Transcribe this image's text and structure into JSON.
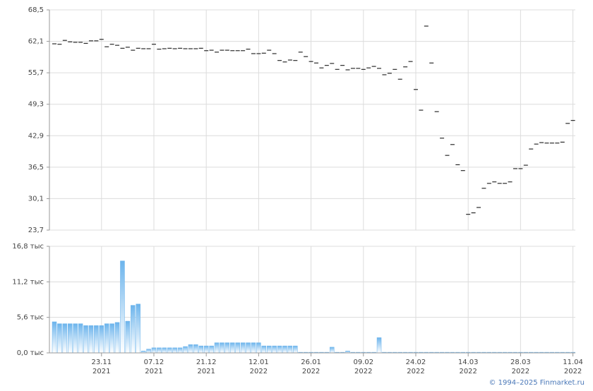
{
  "chart_data": [
    {
      "type": "dash",
      "color": "#000000",
      "grid": true,
      "ylim": [
        23.7,
        68.5
      ],
      "yticks": [
        {
          "value": 23.7,
          "label": "23,7"
        },
        {
          "value": 30.1,
          "label": "30,1"
        },
        {
          "value": 36.5,
          "label": "36,5"
        },
        {
          "value": 42.9,
          "label": "42,9"
        },
        {
          "value": 49.3,
          "label": "49,3"
        },
        {
          "value": 55.7,
          "label": "55,7"
        },
        {
          "value": 62.1,
          "label": "62,1"
        },
        {
          "value": 68.5,
          "label": "68,5"
        }
      ],
      "values": [
        61.6,
        61.5,
        62.3,
        62.0,
        61.9,
        61.9,
        61.7,
        62.2,
        62.2,
        62.5,
        61.0,
        61.5,
        61.3,
        60.7,
        60.9,
        60.3,
        60.7,
        60.6,
        60.6,
        61.5,
        60.5,
        60.6,
        60.7,
        60.6,
        60.7,
        60.6,
        60.6,
        60.6,
        60.7,
        60.2,
        60.3,
        59.9,
        60.3,
        60.3,
        60.2,
        60.2,
        60.2,
        60.5,
        59.6,
        59.6,
        59.7,
        60.3,
        59.6,
        58.2,
        57.9,
        58.3,
        58.2,
        59.9,
        59.0,
        58.0,
        57.7,
        56.7,
        57.2,
        57.6,
        56.4,
        57.2,
        56.3,
        56.6,
        56.6,
        56.4,
        56.7,
        57.0,
        56.6,
        55.3,
        55.6,
        56.4,
        54.4,
        56.9,
        58.0,
        52.3,
        48.1,
        65.2,
        57.7,
        47.8,
        42.4,
        38.9,
        41.1,
        37.0,
        35.8,
        26.9,
        27.2,
        28.3,
        32.2,
        33.2,
        33.5,
        33.2,
        33.2,
        33.5,
        36.2,
        36.2,
        36.9,
        40.2,
        41.2,
        41.5,
        41.4,
        41.4,
        41.4,
        41.6,
        45.4,
        46.0
      ]
    },
    {
      "type": "bar",
      "color": "#6cb4ec",
      "grid": true,
      "ylim": [
        0,
        16.8
      ],
      "yticks": [
        {
          "value": 0,
          "label": "0,0 тыс"
        },
        {
          "value": 5.6,
          "label": "5,6 тыс"
        },
        {
          "value": 11.2,
          "label": "11,2 тыс"
        },
        {
          "value": 16.8,
          "label": "16,8 тыс"
        }
      ],
      "categories": [
        null,
        null,
        null,
        null,
        null,
        null,
        null,
        null,
        null,
        "23.11",
        null,
        null,
        null,
        null,
        null,
        null,
        null,
        null,
        null,
        "07.12",
        null,
        null,
        null,
        null,
        null,
        null,
        null,
        null,
        null,
        "21.12",
        null,
        null,
        null,
        null,
        null,
        null,
        null,
        null,
        null,
        "12.01",
        null,
        null,
        null,
        null,
        null,
        null,
        null,
        null,
        null,
        "26.01",
        null,
        null,
        null,
        null,
        null,
        null,
        null,
        null,
        null,
        "09.02",
        null,
        null,
        null,
        null,
        null,
        null,
        null,
        null,
        null,
        "24.02",
        null,
        null,
        null,
        null,
        null,
        null,
        null,
        null,
        null,
        "14.03",
        null,
        null,
        null,
        null,
        null,
        null,
        null,
        null,
        null,
        "28.03",
        null,
        null,
        null,
        null,
        null,
        null,
        null,
        null,
        null,
        "11.04"
      ],
      "category_years": [
        null,
        null,
        null,
        null,
        null,
        null,
        null,
        null,
        null,
        "2021",
        null,
        null,
        null,
        null,
        null,
        null,
        null,
        null,
        null,
        "2021",
        null,
        null,
        null,
        null,
        null,
        null,
        null,
        null,
        null,
        "2021",
        null,
        null,
        null,
        null,
        null,
        null,
        null,
        null,
        null,
        "2022",
        null,
        null,
        null,
        null,
        null,
        null,
        null,
        null,
        null,
        "2022",
        null,
        null,
        null,
        null,
        null,
        null,
        null,
        null,
        null,
        "2022",
        null,
        null,
        null,
        null,
        null,
        null,
        null,
        null,
        null,
        "2022",
        null,
        null,
        null,
        null,
        null,
        null,
        null,
        null,
        null,
        "2022",
        null,
        null,
        null,
        null,
        null,
        null,
        null,
        null,
        null,
        "2022",
        null,
        null,
        null,
        null,
        null,
        null,
        null,
        null,
        null,
        "2022"
      ],
      "values": [
        4.9,
        4.6,
        4.6,
        4.6,
        4.6,
        4.6,
        4.3,
        4.3,
        4.3,
        4.3,
        4.6,
        4.6,
        4.8,
        14.5,
        5.0,
        7.5,
        7.7,
        0.3,
        0.6,
        0.8,
        0.8,
        0.8,
        0.8,
        0.8,
        0.8,
        1.0,
        1.3,
        1.3,
        1.1,
        1.1,
        1.1,
        1.6,
        1.6,
        1.6,
        1.6,
        1.6,
        1.6,
        1.6,
        1.6,
        1.6,
        1.1,
        1.1,
        1.1,
        1.1,
        1.1,
        1.1,
        1.1,
        0.1,
        0.1,
        0.1,
        0.1,
        0.1,
        0.1,
        0.9,
        0.1,
        0.1,
        0.3,
        0.1,
        0.1,
        0.1,
        0.1,
        0.1,
        2.4,
        0.1,
        0.1,
        0.1,
        0.1,
        0.1,
        0.1,
        0.1,
        0.1,
        0.1,
        0.1,
        0.1,
        0.1,
        0.1,
        0.1,
        0.1,
        0.1,
        0.1,
        0.1,
        0.1,
        0.1,
        0.1,
        0.1,
        0.1,
        0.1,
        0.1,
        0.1,
        0.1,
        0.1,
        0.1,
        0.1,
        0.1,
        0.1,
        0.1,
        0.1,
        0.1,
        0.1,
        0.1
      ]
    }
  ],
  "source": "© 1994–2025 Finmarket.ru"
}
